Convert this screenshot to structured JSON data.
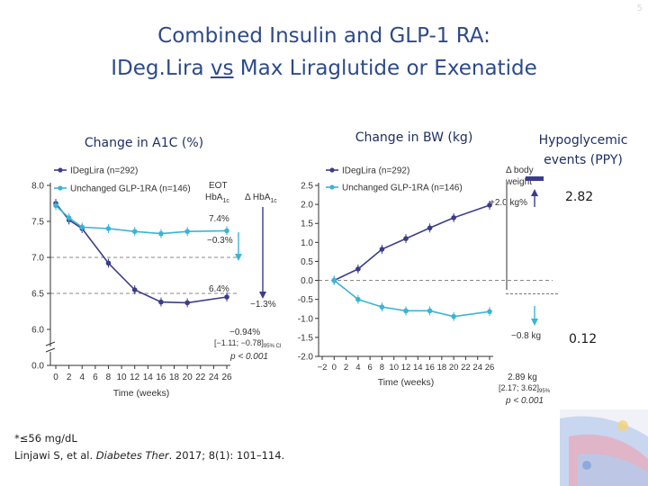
{
  "slide": {
    "title_line1": "Combined Insulin and GLP-1 RA:",
    "title_line2_pre": "IDeg.Lira ",
    "title_line2_vs": "vs",
    "title_line2_post": " Max Liraglutide or Exenatide",
    "number": "5"
  },
  "panels": {
    "a1c_label": "Change in A1C (%)",
    "bw_label": "Change in BW (kg)",
    "hypo_label_line1": "Hypoglycemic",
    "hypo_label_line2": "events (PPY)"
  },
  "hypo": {
    "idegira_value": "2.82",
    "glp1_value": "0.12"
  },
  "footnote": {
    "line1": "*≤56 mg/dL",
    "line2_pre": "Linjawi S, et al. ",
    "line2_journal": "Diabetes Ther",
    "line2_post": ". 2017; 8(1): 101–114."
  },
  "colors": {
    "ideglira": "#3c3c8c",
    "glp1": "#3ab4d6",
    "title": "#2d4a8a"
  },
  "chart_data": [
    {
      "type": "line",
      "ylabel": "",
      "xlabel": "Time (weeks)",
      "ylim": [
        0,
        8
      ],
      "yticks": [
        "0.0",
        "6.0",
        "6.5",
        "7.0",
        "7.5",
        "8.0"
      ],
      "yticks_values": [
        0,
        6.0,
        6.5,
        7.0,
        7.5,
        8.0
      ],
      "y_axis_break": true,
      "x": [
        0,
        2,
        4,
        6,
        8,
        10,
        12,
        14,
        16,
        18,
        20,
        22,
        24,
        26
      ],
      "xticks": [
        "0",
        "2",
        "4",
        "6",
        "8",
        "10",
        "12",
        "14",
        "16",
        "18",
        "20",
        "22",
        "24",
        "26"
      ],
      "series": [
        {
          "name": "IDegLira (n=292)",
          "x": [
            0,
            2,
            4,
            8,
            12,
            16,
            20,
            26
          ],
          "values": [
            7.75,
            7.52,
            7.4,
            6.92,
            6.55,
            6.38,
            6.37,
            6.45
          ]
        },
        {
          "name": "Unchanged GLP-1RA (n=146)",
          "x": [
            0,
            2,
            4,
            8,
            12,
            16,
            20,
            26
          ],
          "values": [
            7.72,
            7.55,
            7.42,
            7.4,
            7.36,
            7.33,
            7.36,
            7.37
          ]
        }
      ],
      "reference_lines": [
        7.0,
        6.5
      ],
      "annotations": {
        "eot_label_line1": "EOT",
        "eot_label_line2": "HbA",
        "eot_label_sub": "1c",
        "delta_label": "Δ HbA",
        "delta_label_sub": "1c",
        "glp1_eot_pct": "7.4%",
        "glp1_change": "−0.3%",
        "ideg_eot_pct": "6.4%",
        "ideg_change": "−1.3%",
        "diff_line1": "−0.94%",
        "diff_line2_pre": "[−1.11; −0.78]",
        "diff_line2_sub": "95% CI",
        "p_value": "p < 0.001"
      }
    },
    {
      "type": "line",
      "ylabel": "",
      "xlabel": "Time (weeks)",
      "ylim": [
        -2.0,
        2.5
      ],
      "yticks": [
        "-2.0",
        "-1.5",
        "-1.0",
        "-0.5",
        "0.0",
        "0.5",
        "1.0",
        "1.5",
        "2.0",
        "2.5"
      ],
      "yticks_values": [
        -2.0,
        -1.5,
        -1.0,
        -0.5,
        0.0,
        0.5,
        1.0,
        1.5,
        2.0,
        2.5
      ],
      "x": [
        -2,
        0,
        2,
        4,
        6,
        8,
        10,
        12,
        14,
        16,
        18,
        20,
        22,
        24,
        26
      ],
      "xticks": [
        "−2",
        "0",
        "2",
        "4",
        "6",
        "8",
        "10",
        "12",
        "14",
        "16",
        "18",
        "20",
        "22",
        "24",
        "26"
      ],
      "series": [
        {
          "name": "IDegLira (n=292)",
          "x": [
            0,
            4,
            8,
            12,
            16,
            20,
            26
          ],
          "values": [
            0.0,
            0.3,
            0.82,
            1.1,
            1.38,
            1.65,
            1.98
          ]
        },
        {
          "name": "Unchanged GLP-1RA (n=146)",
          "x": [
            0,
            4,
            8,
            12,
            16,
            20,
            26
          ],
          "values": [
            0.0,
            -0.5,
            -0.7,
            -0.8,
            -0.8,
            -0.95,
            -0.82
          ]
        }
      ],
      "reference_lines": [
        0.0
      ],
      "annotations": {
        "delta_label_line1": "Δ body",
        "delta_label_line2": "weight",
        "ideg_change": "+2.0 kg%",
        "glp1_change": "−0.8 kg",
        "diff_line1": "2.89 kg",
        "diff_line2_pre": "[2.17; 3.62]",
        "diff_line2_sub": "95%",
        "p_value": "p < 0.001"
      }
    }
  ]
}
